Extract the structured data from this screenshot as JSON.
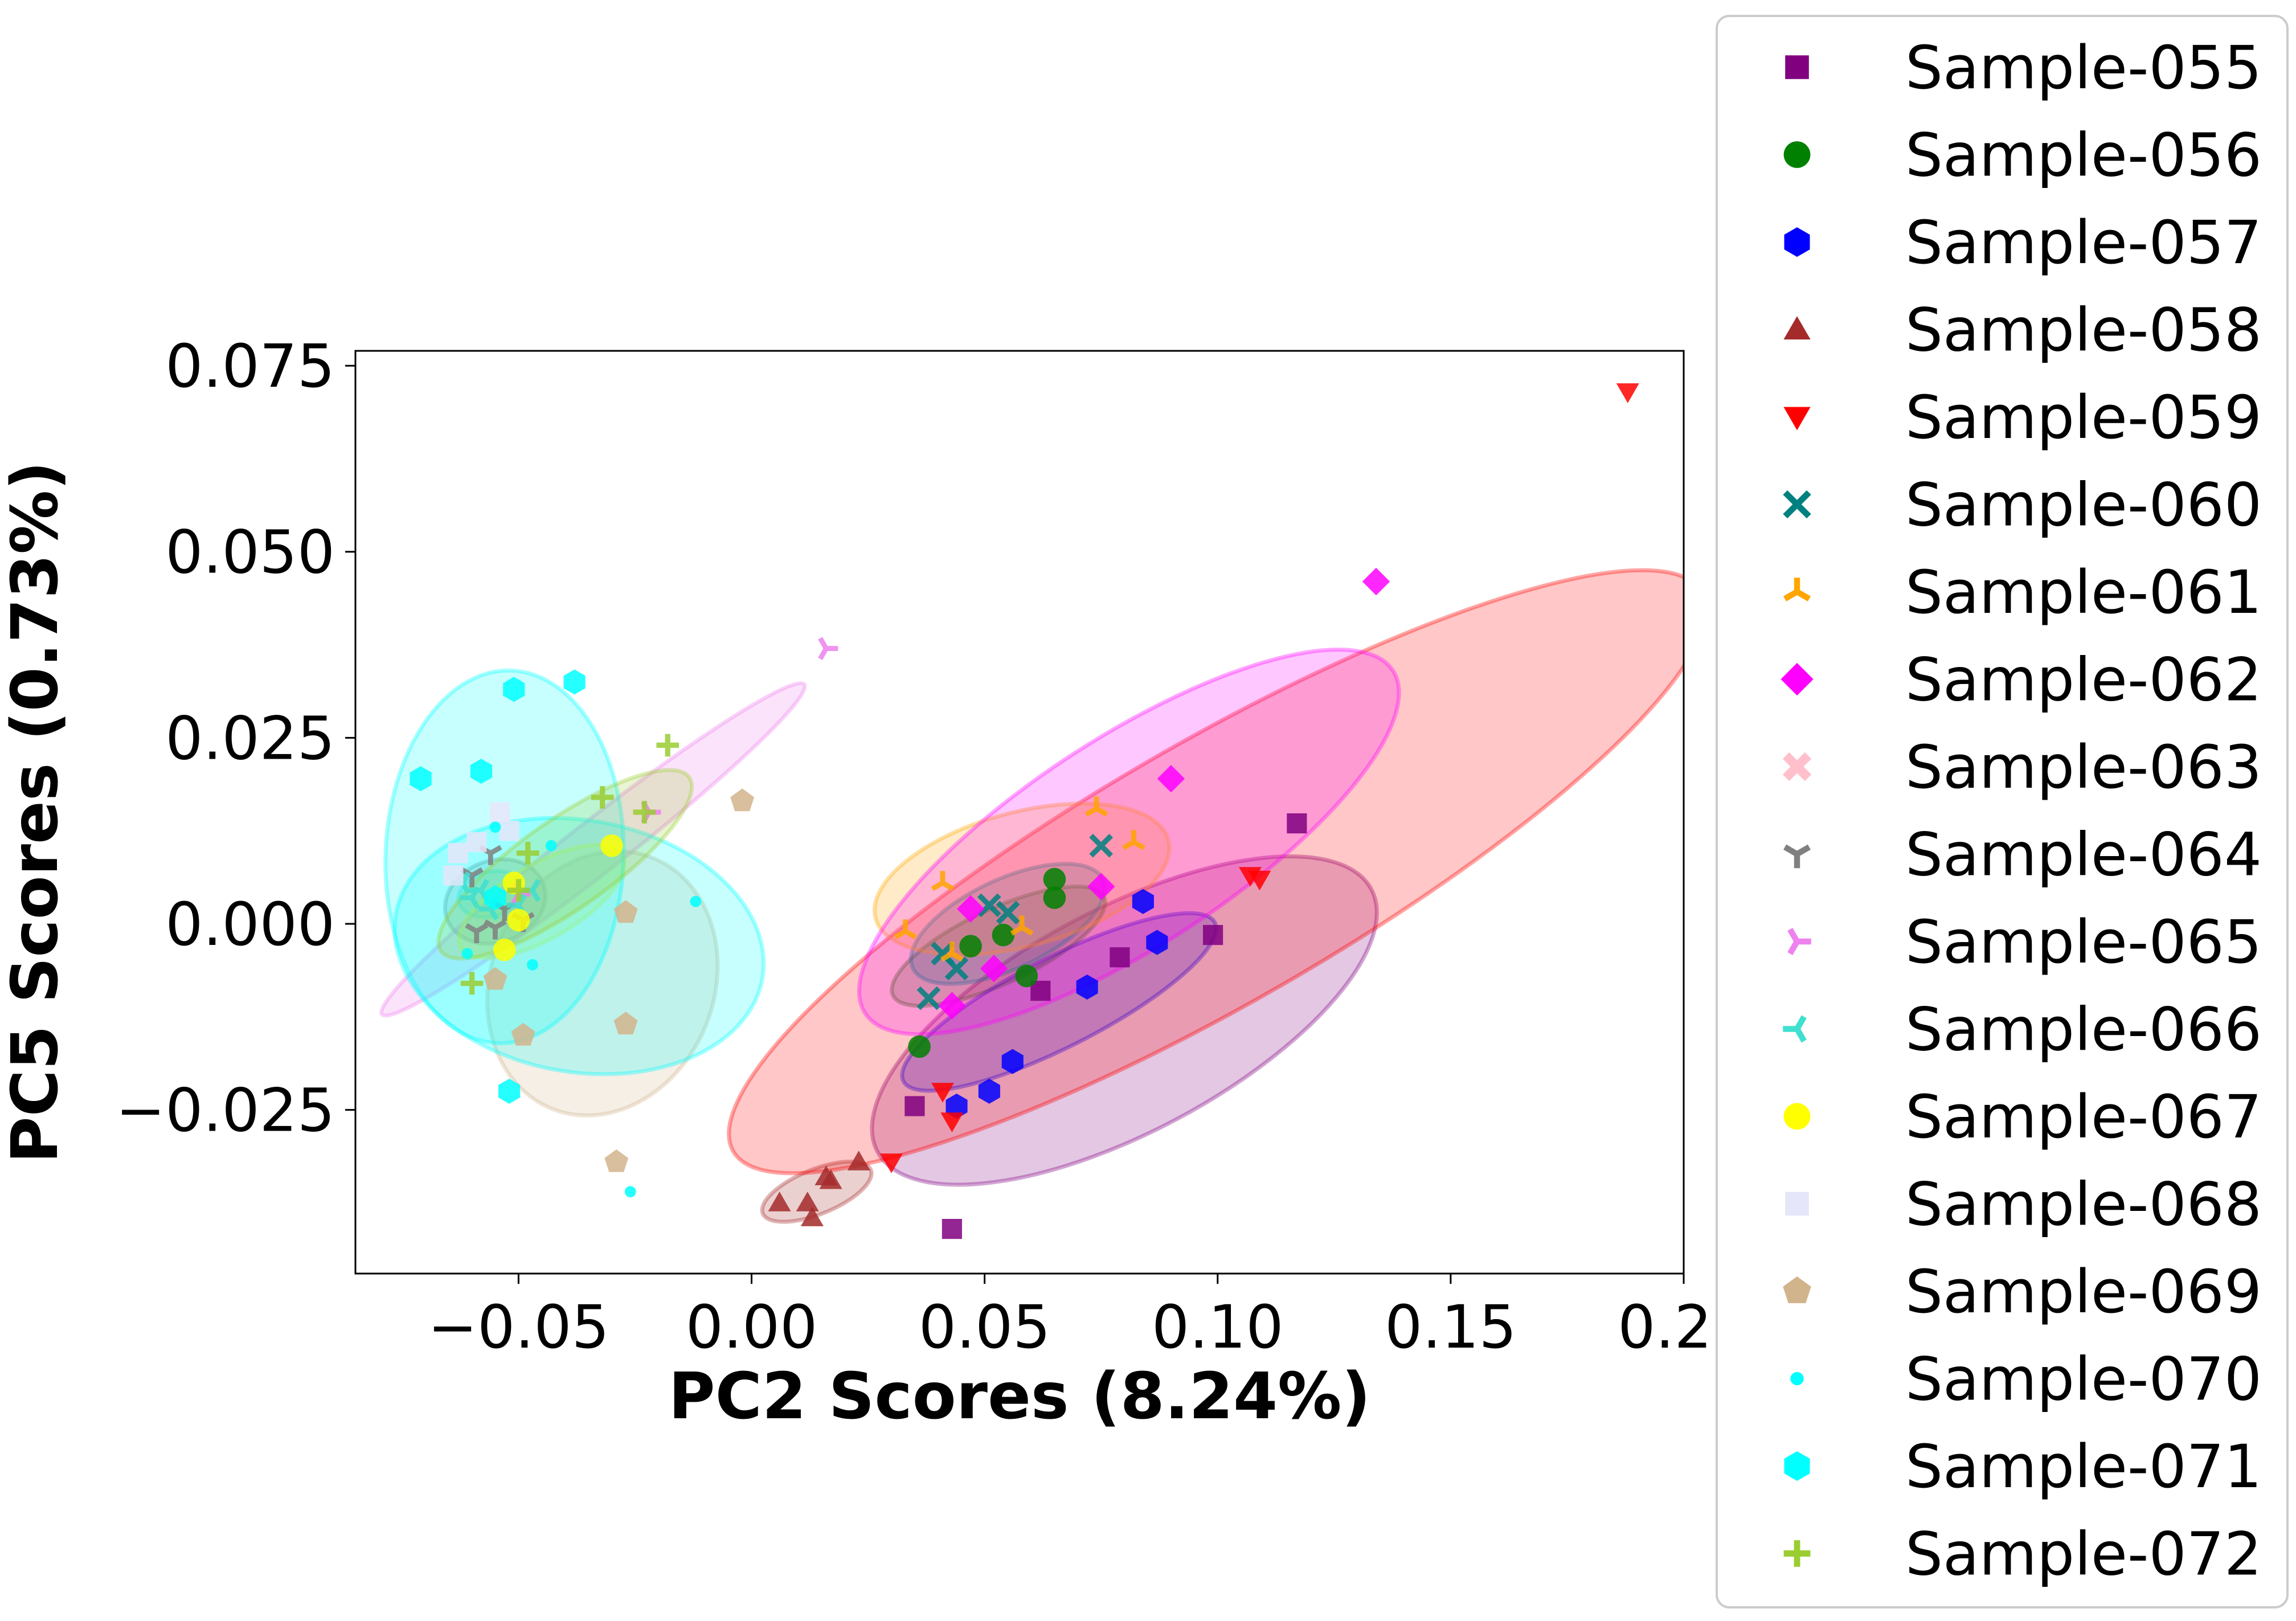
{
  "chart_data": {
    "type": "scatter",
    "title": "",
    "xlabel": "PC2 Scores (8.24%)",
    "ylabel": "PC5 Scores (0.73%)",
    "xlim": [
      -0.085,
      0.2
    ],
    "ylim": [
      -0.047,
      0.077
    ],
    "xticks": [
      -0.05,
      0.0,
      0.05,
      0.1,
      0.15,
      0.2
    ],
    "xtick_labels": [
      "−0.05",
      "0.00",
      "0.05",
      "0.10",
      "0.15",
      "0.20"
    ],
    "yticks": [
      -0.025,
      0.0,
      0.025,
      0.05,
      0.075
    ],
    "ytick_labels": [
      "−0.025",
      "0.000",
      "0.025",
      "0.050",
      "0.075"
    ],
    "grid": false,
    "legend_position": "outside-right",
    "series": [
      {
        "name": "Sample-055",
        "color": "#800080",
        "marker": "square",
        "points": [
          [
            0.117,
            0.0135
          ],
          [
            0.099,
            -0.0015
          ],
          [
            0.079,
            -0.0045
          ],
          [
            0.062,
            -0.009
          ],
          [
            0.035,
            -0.0245
          ],
          [
            0.043,
            -0.041
          ]
        ],
        "ellipse": {
          "cx": 0.08,
          "cy": -0.013,
          "w": 0.12,
          "h": 0.03,
          "angle": 28
        }
      },
      {
        "name": "Sample-056",
        "color": "#008000",
        "marker": "circle",
        "points": [
          [
            0.065,
            0.006
          ],
          [
            0.065,
            0.0035
          ],
          [
            0.054,
            -0.0015
          ],
          [
            0.047,
            -0.003
          ],
          [
            0.059,
            -0.007
          ],
          [
            0.036,
            -0.0165
          ]
        ],
        "ellipse": {
          "cx": 0.053,
          "cy": -0.003,
          "w": 0.05,
          "h": 0.01,
          "angle": 25
        }
      },
      {
        "name": "Sample-057",
        "color": "#0000ff",
        "marker": "hexagon",
        "points": [
          [
            0.084,
            0.003
          ],
          [
            0.087,
            -0.0025
          ],
          [
            0.072,
            -0.0085
          ],
          [
            0.056,
            -0.0185
          ],
          [
            0.051,
            -0.0225
          ],
          [
            0.044,
            -0.0245
          ]
        ],
        "ellipse": {
          "cx": 0.066,
          "cy": -0.0105,
          "w": 0.075,
          "h": 0.012,
          "angle": 27
        }
      },
      {
        "name": "Sample-058",
        "color": "#a52a2a",
        "marker": "triangle-up",
        "points": [
          [
            0.006,
            -0.0375
          ],
          [
            0.012,
            -0.0375
          ],
          [
            0.013,
            -0.0395
          ],
          [
            0.016,
            -0.034
          ],
          [
            0.017,
            -0.0345
          ],
          [
            0.023,
            -0.032
          ]
        ],
        "ellipse": {
          "cx": 0.014,
          "cy": -0.036,
          "w": 0.025,
          "h": 0.006,
          "angle": 22
        }
      },
      {
        "name": "Sample-059",
        "color": "#ff0000",
        "marker": "triangle-down",
        "points": [
          [
            0.188,
            0.0715
          ],
          [
            0.107,
            0.0065
          ],
          [
            0.109,
            0.006
          ],
          [
            0.03,
            -0.032
          ],
          [
            0.041,
            -0.0225
          ],
          [
            0.043,
            -0.0265
          ]
        ],
        "ellipse": {
          "cx": 0.1,
          "cy": 0.007,
          "w": 0.24,
          "h": 0.035,
          "angle": 30
        }
      },
      {
        "name": "Sample-060",
        "color": "#008080",
        "marker": "x",
        "points": [
          [
            0.075,
            0.0105
          ],
          [
            0.051,
            0.0025
          ],
          [
            0.055,
            0.0015
          ],
          [
            0.041,
            -0.004
          ],
          [
            0.044,
            -0.006
          ],
          [
            0.038,
            -0.01
          ]
        ],
        "ellipse": {
          "cx": 0.055,
          "cy": 0.0,
          "w": 0.045,
          "h": 0.012,
          "angle": 25
        }
      },
      {
        "name": "Sample-061",
        "color": "#ffa500",
        "marker": "tri-down",
        "points": [
          [
            0.074,
            0.0155
          ],
          [
            0.082,
            0.011
          ],
          [
            0.041,
            0.0055
          ],
          [
            0.058,
            -0.0005
          ],
          [
            0.033,
            -0.001
          ],
          [
            0.043,
            -0.004
          ]
        ],
        "ellipse": {
          "cx": 0.058,
          "cy": 0.006,
          "w": 0.065,
          "h": 0.018,
          "angle": 15
        }
      },
      {
        "name": "Sample-062",
        "color": "#ff00ff",
        "marker": "diamond",
        "points": [
          [
            0.134,
            0.046
          ],
          [
            0.09,
            0.0195
          ],
          [
            0.075,
            0.005
          ],
          [
            0.047,
            0.002
          ],
          [
            0.052,
            -0.006
          ],
          [
            0.043,
            -0.011
          ]
        ],
        "ellipse": {
          "cx": 0.081,
          "cy": 0.011,
          "w": 0.135,
          "h": 0.028,
          "angle": 33
        }
      },
      {
        "name": "Sample-063",
        "color": "#ffc0cb",
        "marker": "x-filled",
        "points": []
      },
      {
        "name": "Sample-064",
        "color": "#808080",
        "marker": "tri-up",
        "points": [
          [
            -0.06,
            0.0065
          ],
          [
            -0.056,
            0.0095
          ],
          [
            -0.059,
            -0.001
          ],
          [
            -0.055,
            -0.0005
          ],
          [
            -0.053,
            0.002
          ],
          [
            -0.049,
            0.0005
          ]
        ],
        "ellipse": {
          "cx": -0.055,
          "cy": 0.003,
          "w": 0.022,
          "h": 0.011,
          "angle": 20
        }
      },
      {
        "name": "Sample-065",
        "color": "#ee82ee",
        "marker": "tri-left",
        "points": [
          [
            0.016,
            0.037
          ],
          [
            -0.022,
            0.015
          ],
          [
            -0.05,
            0.004
          ]
        ],
        "ellipse": {
          "cx": -0.034,
          "cy": 0.01,
          "w": 0.115,
          "h": 0.007,
          "angle": 38
        }
      },
      {
        "name": "Sample-066",
        "color": "#40e0d0",
        "marker": "tri-right",
        "points": [
          [
            -0.062,
            0.0055
          ],
          [
            -0.058,
            0.0045
          ],
          [
            -0.06,
            0.0035
          ],
          [
            -0.05,
            0.0025
          ],
          [
            -0.047,
            0.0045
          ],
          [
            -0.056,
            0.002
          ]
        ],
        "ellipse": {
          "cx": -0.056,
          "cy": 0.004,
          "w": 0.014,
          "h": 0.006,
          "angle": 15
        }
      },
      {
        "name": "Sample-067",
        "color": "#ffff00",
        "marker": "circle",
        "points": [
          [
            -0.03,
            0.0105
          ],
          [
            -0.051,
            0.0055
          ],
          [
            -0.05,
            0.0005
          ],
          [
            -0.053,
            -0.0035
          ]
        ],
        "ellipse": {
          "cx": -0.045,
          "cy": 0.003,
          "w": 0.04,
          "h": 0.01,
          "angle": 30
        }
      },
      {
        "name": "Sample-068",
        "color": "#e6e6fa",
        "marker": "square",
        "points": [
          [
            -0.054,
            0.015
          ],
          [
            -0.063,
            0.0095
          ],
          [
            -0.059,
            0.011
          ],
          [
            -0.052,
            0.0125
          ],
          [
            -0.064,
            0.0065
          ]
        ]
      },
      {
        "name": "Sample-069",
        "color": "#d2b48c",
        "marker": "pentagon",
        "points": [
          [
            -0.002,
            0.0165
          ],
          [
            -0.027,
            0.0015
          ],
          [
            -0.027,
            -0.0135
          ],
          [
            -0.049,
            -0.015
          ],
          [
            -0.029,
            -0.032
          ],
          [
            -0.055,
            -0.0075
          ]
        ],
        "ellipse": {
          "cx": -0.032,
          "cy": -0.008,
          "w": 0.058,
          "h": 0.03,
          "angle": 68
        }
      },
      {
        "name": "Sample-070",
        "color": "#00ffff",
        "marker": "point",
        "points": [
          [
            -0.043,
            0.0105
          ],
          [
            -0.055,
            0.013
          ],
          [
            -0.012,
            0.003
          ],
          [
            -0.047,
            -0.0055
          ],
          [
            -0.061,
            -0.004
          ],
          [
            -0.026,
            -0.036
          ]
        ],
        "ellipse": {
          "cx": -0.037,
          "cy": -0.003,
          "w": 0.054,
          "h": 0.05,
          "angle": 80
        }
      },
      {
        "name": "Sample-071",
        "color": "#00ffff",
        "marker": "hexagon",
        "points": [
          [
            -0.051,
            0.0315
          ],
          [
            -0.038,
            0.0325
          ],
          [
            -0.071,
            0.0195
          ],
          [
            -0.058,
            0.0205
          ],
          [
            -0.055,
            0.0035
          ],
          [
            -0.052,
            -0.0225
          ]
        ],
        "ellipse": {
          "cx": -0.053,
          "cy": 0.009,
          "w": 0.08,
          "h": 0.032,
          "angle": 88
        }
      },
      {
        "name": "Sample-072",
        "color": "#9acd32",
        "marker": "plus",
        "points": [
          [
            -0.018,
            0.024
          ],
          [
            -0.032,
            0.017
          ],
          [
            -0.023,
            0.015
          ],
          [
            -0.048,
            0.0095
          ],
          [
            -0.05,
            0.0045
          ],
          [
            -0.06,
            -0.008
          ]
        ],
        "ellipse": {
          "cx": -0.04,
          "cy": 0.008,
          "w": 0.065,
          "h": 0.012,
          "angle": 35
        }
      }
    ]
  }
}
